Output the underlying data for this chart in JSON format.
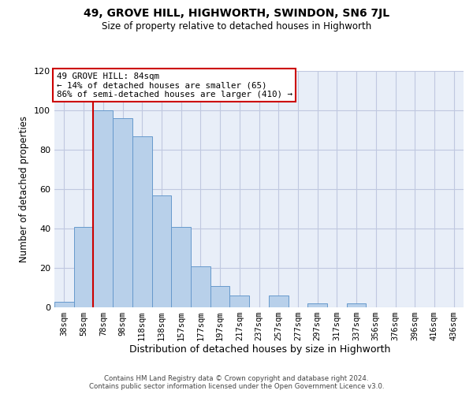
{
  "title": "49, GROVE HILL, HIGHWORTH, SWINDON, SN6 7JL",
  "subtitle": "Size of property relative to detached houses in Highworth",
  "xlabel": "Distribution of detached houses by size in Highworth",
  "ylabel": "Number of detached properties",
  "bar_labels": [
    "38sqm",
    "58sqm",
    "78sqm",
    "98sqm",
    "118sqm",
    "138sqm",
    "157sqm",
    "177sqm",
    "197sqm",
    "217sqm",
    "237sqm",
    "257sqm",
    "277sqm",
    "297sqm",
    "317sqm",
    "337sqm",
    "356sqm",
    "376sqm",
    "396sqm",
    "416sqm",
    "436sqm"
  ],
  "bar_values": [
    3,
    41,
    100,
    96,
    87,
    57,
    41,
    21,
    11,
    6,
    0,
    6,
    0,
    2,
    0,
    2,
    0,
    0,
    0,
    0,
    0
  ],
  "bar_color": "#b8d0ea",
  "bar_edge_color": "#6699cc",
  "vline_color": "#cc0000",
  "annotation_title": "49 GROVE HILL: 84sqm",
  "annotation_line1": "← 14% of detached houses are smaller (65)",
  "annotation_line2": "86% of semi-detached houses are larger (410) →",
  "annotation_box_color": "#ffffff",
  "annotation_box_edge_color": "#cc0000",
  "ylim": [
    0,
    120
  ],
  "bg_color": "#e8eef8",
  "footer1": "Contains HM Land Registry data © Crown copyright and database right 2024.",
  "footer2": "Contains public sector information licensed under the Open Government Licence v3.0."
}
